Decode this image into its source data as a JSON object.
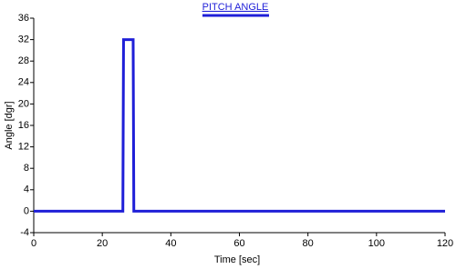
{
  "chart_data": {
    "type": "line",
    "x_label": "Time [sec]",
    "y_label": "Angle [dgr]",
    "xlim": [
      0,
      120
    ],
    "xticks": [
      0,
      20,
      40,
      60,
      80,
      100,
      120
    ],
    "ylim": [
      -4,
      36
    ],
    "yticks": [
      -4,
      0,
      4,
      8,
      12,
      16,
      20,
      24,
      28,
      32,
      36
    ],
    "x": [
      0,
      26,
      26.2,
      29,
      29.2,
      120
    ],
    "series": [
      {
        "name": "PITCH ANGLE",
        "color": "#1f1fd8",
        "values": [
          0,
          0,
          32,
          32,
          0,
          0
        ]
      }
    ]
  }
}
